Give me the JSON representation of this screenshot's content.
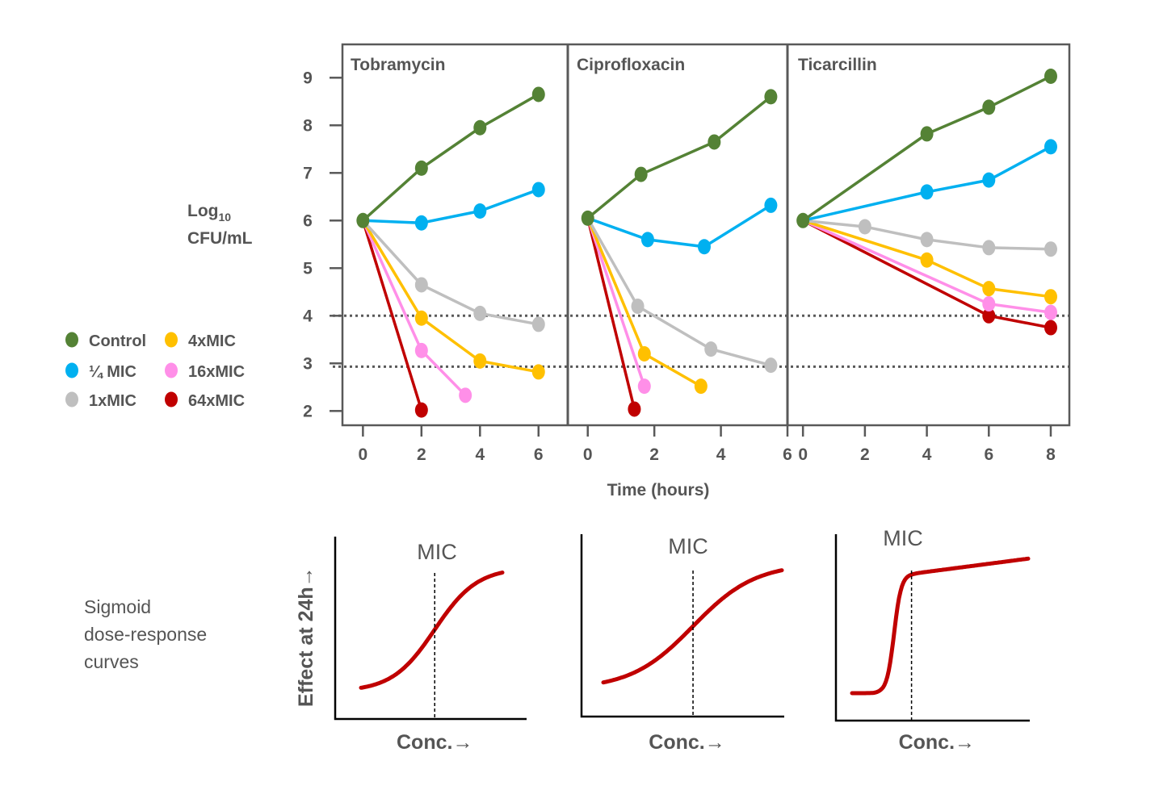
{
  "chart_data": [
    {
      "type": "line",
      "title": "Tobramycin",
      "xlabel": "Time (hours)",
      "ylabel": "Log10 CFU/mL",
      "ylabel_line1": "Log",
      "ylabel_sub": "10",
      "ylabel_line2": "CFU/mL",
      "xlim": [
        -0.7,
        7.0
      ],
      "ylim": [
        1.7,
        9.7
      ],
      "xticks": [
        0,
        2,
        4,
        6
      ],
      "yticks": [
        2,
        3,
        4,
        5,
        6,
        7,
        8,
        9
      ],
      "reference_lines": [
        4,
        2.93
      ],
      "series": [
        {
          "name": "Control",
          "x": [
            0,
            2,
            4,
            6
          ],
          "y": [
            6,
            7.1,
            7.95,
            8.65
          ]
        },
        {
          "name": "¼ MIC",
          "x": [
            0,
            2,
            4,
            6
          ],
          "y": [
            6,
            5.95,
            6.2,
            6.65
          ]
        },
        {
          "name": "1xMIC",
          "x": [
            0,
            2,
            4,
            6
          ],
          "y": [
            6,
            4.65,
            4.05,
            3.82
          ]
        },
        {
          "name": "4xMIC",
          "x": [
            0,
            2,
            4,
            6
          ],
          "y": [
            6,
            3.95,
            3.05,
            2.82
          ]
        },
        {
          "name": "16xMIC",
          "x": [
            0,
            2,
            3.5
          ],
          "y": [
            6,
            3.27,
            2.33
          ]
        },
        {
          "name": "64xMIC",
          "x": [
            0,
            2
          ],
          "y": [
            6,
            2.02
          ]
        }
      ]
    },
    {
      "type": "line",
      "title": "Ciprofloxacin",
      "xlim": [
        -0.6,
        6.0
      ],
      "ylim": [
        1.7,
        9.7
      ],
      "xticks": [
        0,
        2,
        4,
        6
      ],
      "reference_lines": [
        4,
        2.93
      ],
      "series": [
        {
          "name": "Control",
          "x": [
            0,
            1.6,
            3.8,
            5.5
          ],
          "y": [
            6.05,
            6.97,
            7.65,
            8.6
          ]
        },
        {
          "name": "¼ MIC",
          "x": [
            0,
            1.8,
            3.5,
            5.5
          ],
          "y": [
            6.05,
            5.6,
            5.45,
            6.32
          ]
        },
        {
          "name": "1xMIC",
          "x": [
            0,
            1.5,
            3.7,
            5.5
          ],
          "y": [
            6.05,
            4.2,
            3.3,
            2.96
          ]
        },
        {
          "name": "4xMIC",
          "x": [
            0,
            1.7,
            3.4
          ],
          "y": [
            6.05,
            3.2,
            2.52
          ]
        },
        {
          "name": "16xMIC",
          "x": [
            0,
            1.7
          ],
          "y": [
            6.05,
            2.52
          ]
        },
        {
          "name": "64xMIC",
          "x": [
            0,
            1.4
          ],
          "y": [
            6.05,
            2.04
          ]
        }
      ]
    },
    {
      "type": "line",
      "title": "Ticarcillin",
      "xlim": [
        -0.5,
        8.6
      ],
      "ylim": [
        1.7,
        9.7
      ],
      "xticks": [
        0,
        2,
        4,
        6,
        8
      ],
      "reference_lines": [
        4,
        2.93
      ],
      "series": [
        {
          "name": "Control",
          "x": [
            0,
            4,
            6,
            8
          ],
          "y": [
            6,
            7.82,
            8.38,
            9.03
          ]
        },
        {
          "name": "¼ MIC",
          "x": [
            0,
            4,
            6,
            8
          ],
          "y": [
            6,
            6.6,
            6.85,
            7.55
          ]
        },
        {
          "name": "1xMIC",
          "x": [
            0,
            2,
            4,
            6,
            8
          ],
          "y": [
            6,
            5.87,
            5.6,
            5.43,
            5.4
          ]
        },
        {
          "name": "4xMIC",
          "x": [
            0,
            4,
            6,
            8
          ],
          "y": [
            6,
            5.17,
            4.57,
            4.4
          ]
        },
        {
          "name": "16xMIC",
          "x": [
            0,
            6,
            8
          ],
          "y": [
            6,
            4.25,
            4.07
          ]
        },
        {
          "name": "64xMIC",
          "x": [
            0,
            6,
            8
          ],
          "y": [
            6,
            4.0,
            3.75
          ]
        }
      ]
    },
    {
      "type": "line",
      "title": "Sigmoid dose-response curves",
      "xlabel": "Conc.→",
      "ylabel": "Effect at 24h→",
      "curves": [
        {
          "annotation": "MIC",
          "mic_position": 0.52,
          "steepness": "moderate",
          "plateau": 0.83
        },
        {
          "annotation": "MIC",
          "mic_position": 0.55,
          "steepness": "shallow",
          "plateau": 0.84
        },
        {
          "annotation": "MIC",
          "mic_position": 0.39,
          "steepness": "steep",
          "plateau": 0.87
        }
      ]
    }
  ],
  "legend": {
    "items": [
      {
        "label": "Control",
        "color": "#548235"
      },
      {
        "label": "4xMIC",
        "color": "#FFC000"
      },
      {
        "label": "¼ MIC",
        "color": "#00B0F0"
      },
      {
        "label": "16xMIC",
        "color": "#FF8FE8"
      },
      {
        "label": "1xMIC",
        "color": "#BFBFBF"
      },
      {
        "label": "64xMIC",
        "color": "#C00000"
      }
    ]
  },
  "colors": {
    "Control": "#548235",
    "¼ MIC": "#00B0F0",
    "1xMIC": "#BFBFBF",
    "4xMIC": "#FFC000",
    "16xMIC": "#FF8FE8",
    "64xMIC": "#C00000",
    "frame": "#595959",
    "text": "#555555",
    "sigmoid": "#C00000"
  },
  "sigmoid_caption": [
    "Sigmoid",
    "dose-response",
    "curves"
  ]
}
